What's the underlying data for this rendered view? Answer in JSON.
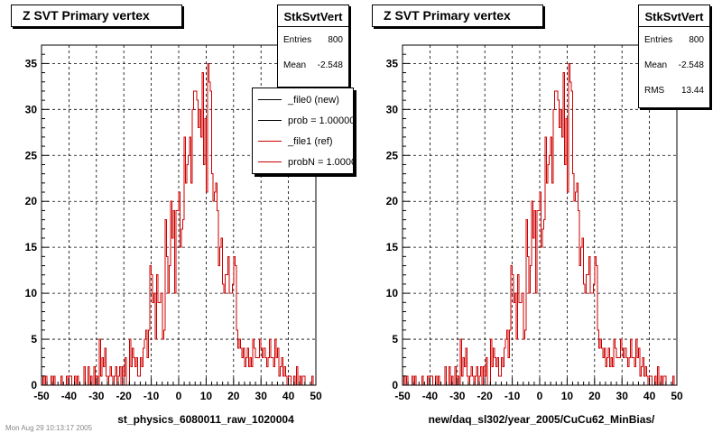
{
  "footer_text": "Mon Aug 29 10:13:17 2005",
  "chart_data": [
    {
      "type": "histogram",
      "title": "Z SVT Primary vertex",
      "xlabel": "st_physics_6080011_raw_1020004",
      "ylabel": "",
      "xlim": [
        -50,
        50
      ],
      "ylim": [
        0,
        37
      ],
      "xticks": [
        "-50",
        "-40",
        "-30",
        "-20",
        "-10",
        "0",
        "10",
        "20",
        "30",
        "40",
        "50"
      ],
      "yticks": [
        "0",
        "5",
        "10",
        "15",
        "20",
        "25",
        "30",
        "35"
      ],
      "grid": true,
      "stats": {
        "name": "StkSvtVert",
        "rows": [
          {
            "label": "Entries",
            "value": "800"
          },
          {
            "label": "Mean",
            "value": "-2.548"
          }
        ]
      },
      "legend": {
        "placement": "top-right",
        "entries": [
          {
            "label": "_file0 (new)",
            "color": "#000000"
          },
          {
            "label": "prob = 1.000000",
            "color": "#000000"
          },
          {
            "label": "_file1 (ref)",
            "color": "#cc0000"
          },
          {
            "label": "probN = 1.000000",
            "color": "#cc0000"
          }
        ]
      },
      "bin_edges": [
        -50,
        50
      ],
      "n_bins": 200,
      "series": [
        {
          "name": "_file0 (new)",
          "color": "#000000",
          "values": [
            0,
            1,
            0,
            1,
            0,
            0,
            0,
            1,
            0,
            1,
            0,
            0,
            0,
            0,
            1,
            0,
            0,
            0,
            1,
            0,
            1,
            1,
            0,
            0,
            1,
            0,
            1,
            0,
            0,
            0,
            0,
            2,
            0,
            0,
            2,
            0,
            1,
            0,
            2,
            0,
            1,
            0,
            5,
            1,
            3,
            2,
            4,
            1,
            0,
            1,
            2,
            1,
            0,
            1,
            2,
            0,
            1,
            2,
            0,
            2,
            1,
            3,
            0,
            0,
            5,
            2,
            4,
            3,
            2,
            3,
            1,
            1,
            3,
            2,
            4,
            5,
            6,
            3,
            6,
            13,
            12,
            9,
            10,
            5,
            12,
            9,
            9,
            10,
            5,
            6,
            18,
            14,
            10,
            13,
            20,
            16,
            19,
            10,
            19,
            19,
            21,
            15,
            17,
            18,
            27,
            22,
            24,
            25,
            27,
            22,
            30,
            32,
            32,
            31,
            28,
            30,
            27,
            34,
            24,
            29,
            21,
            35,
            33,
            32,
            23,
            20,
            21,
            22,
            19,
            13,
            15,
            16,
            11,
            10,
            12,
            12,
            14,
            10,
            10,
            11,
            14,
            13,
            6,
            4,
            5,
            4,
            3,
            4,
            2,
            3,
            4,
            2,
            3,
            2,
            5,
            4,
            3,
            3,
            3,
            5,
            4,
            3,
            4,
            3,
            2,
            3,
            5,
            3,
            3,
            2,
            5,
            3,
            4,
            1,
            2,
            3,
            1,
            2,
            1,
            0,
            1,
            1,
            0,
            0,
            1,
            0,
            2,
            0,
            1,
            0,
            1,
            1,
            0,
            0,
            0,
            0,
            0,
            1,
            0,
            0
          ]
        },
        {
          "name": "_file1 (ref)",
          "color": "#cc0000",
          "values": [
            0,
            1,
            0,
            1,
            0,
            0,
            0,
            1,
            0,
            1,
            0,
            0,
            0,
            0,
            1,
            0,
            0,
            0,
            1,
            0,
            1,
            1,
            0,
            0,
            1,
            0,
            1,
            0,
            0,
            0,
            0,
            2,
            0,
            0,
            2,
            0,
            1,
            0,
            2,
            0,
            1,
            0,
            5,
            1,
            3,
            2,
            4,
            1,
            0,
            1,
            2,
            1,
            0,
            1,
            2,
            0,
            1,
            2,
            0,
            2,
            1,
            3,
            0,
            0,
            5,
            2,
            4,
            3,
            2,
            3,
            1,
            1,
            3,
            2,
            4,
            5,
            6,
            3,
            6,
            13,
            12,
            9,
            10,
            5,
            12,
            9,
            9,
            10,
            5,
            6,
            18,
            14,
            10,
            13,
            20,
            16,
            19,
            10,
            19,
            19,
            21,
            15,
            17,
            18,
            27,
            22,
            24,
            25,
            27,
            22,
            30,
            32,
            32,
            31,
            28,
            30,
            27,
            34,
            24,
            29,
            21,
            35,
            33,
            32,
            23,
            20,
            21,
            22,
            19,
            13,
            15,
            16,
            11,
            10,
            12,
            12,
            14,
            10,
            10,
            11,
            14,
            13,
            6,
            4,
            5,
            4,
            3,
            4,
            2,
            3,
            4,
            2,
            3,
            2,
            5,
            4,
            3,
            3,
            3,
            5,
            4,
            3,
            4,
            3,
            2,
            3,
            5,
            3,
            3,
            2,
            5,
            3,
            4,
            1,
            2,
            3,
            1,
            2,
            1,
            0,
            1,
            1,
            0,
            0,
            1,
            0,
            2,
            0,
            1,
            0,
            1,
            1,
            0,
            0,
            0,
            0,
            0,
            1,
            0,
            0
          ]
        }
      ]
    },
    {
      "type": "histogram",
      "title": "Z SVT Primary vertex",
      "xlabel": "new/daq_sl302/year_2005/CuCu62_MinBias/",
      "ylabel": "",
      "xlim": [
        -50,
        50
      ],
      "ylim": [
        0,
        37
      ],
      "xticks": [
        "-50",
        "-40",
        "-30",
        "-20",
        "-10",
        "0",
        "10",
        "20",
        "30",
        "40",
        "50"
      ],
      "yticks": [
        "0",
        "5",
        "10",
        "15",
        "20",
        "25",
        "30",
        "35"
      ],
      "grid": true,
      "stats": {
        "name": "StkSvtVert",
        "rows": [
          {
            "label": "Entries",
            "value": "800"
          },
          {
            "label": "Mean",
            "value": "-2.548"
          },
          {
            "label": "RMS",
            "value": "13.44"
          }
        ]
      },
      "bin_edges": [
        -50,
        50
      ],
      "n_bins": 200,
      "series": [
        {
          "name": "",
          "color": "#cc0000",
          "values": [
            0,
            1,
            0,
            1,
            0,
            0,
            0,
            1,
            0,
            1,
            0,
            0,
            0,
            0,
            1,
            0,
            0,
            0,
            1,
            0,
            1,
            1,
            0,
            0,
            1,
            0,
            1,
            0,
            0,
            0,
            0,
            2,
            0,
            0,
            2,
            0,
            1,
            0,
            2,
            0,
            1,
            0,
            5,
            1,
            3,
            2,
            4,
            1,
            0,
            1,
            2,
            1,
            0,
            1,
            2,
            0,
            1,
            2,
            0,
            2,
            1,
            3,
            0,
            0,
            5,
            2,
            4,
            3,
            2,
            3,
            1,
            1,
            3,
            2,
            4,
            5,
            6,
            3,
            6,
            13,
            12,
            9,
            10,
            5,
            12,
            9,
            9,
            10,
            5,
            6,
            18,
            14,
            10,
            13,
            20,
            16,
            19,
            10,
            19,
            19,
            21,
            15,
            17,
            18,
            27,
            22,
            24,
            25,
            27,
            22,
            30,
            32,
            32,
            31,
            28,
            30,
            27,
            34,
            24,
            29,
            21,
            35,
            33,
            32,
            23,
            20,
            21,
            22,
            19,
            13,
            15,
            16,
            11,
            10,
            12,
            12,
            14,
            10,
            10,
            11,
            14,
            13,
            6,
            4,
            5,
            4,
            3,
            4,
            2,
            3,
            4,
            2,
            3,
            2,
            5,
            4,
            3,
            3,
            3,
            5,
            4,
            3,
            4,
            3,
            2,
            3,
            5,
            3,
            3,
            2,
            5,
            3,
            4,
            1,
            2,
            3,
            1,
            2,
            1,
            0,
            1,
            1,
            0,
            0,
            1,
            0,
            2,
            0,
            1,
            0,
            1,
            1,
            0,
            0,
            0,
            0,
            0,
            1,
            0,
            0
          ]
        }
      ]
    }
  ]
}
